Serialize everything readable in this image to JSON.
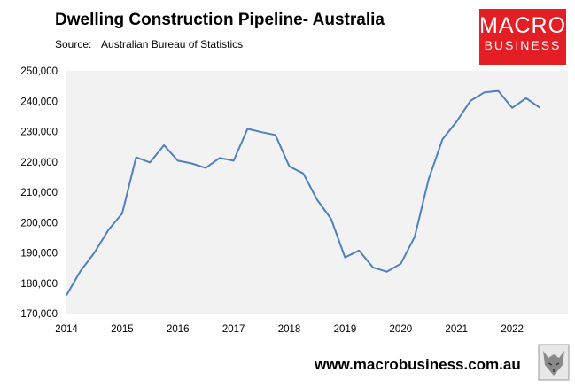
{
  "header": {
    "title": "Dwelling Construction Pipeline- Australia",
    "source_label": "Source:",
    "source_text": "Australian Bureau of Statistics"
  },
  "logo": {
    "line1": "MACRO",
    "line2": "BUSINESS",
    "color": "#e31e24"
  },
  "footer": {
    "url": "www.macrobusiness.com.au"
  },
  "chart_data": {
    "type": "line",
    "title": "Dwelling Construction Pipeline- Australia",
    "xlabel": "",
    "ylabel": "",
    "x_ticks": [
      "2014",
      "2015",
      "2016",
      "2017",
      "2018",
      "2019",
      "2020",
      "2021",
      "2022"
    ],
    "y_ticks": [
      "170,000",
      "180,000",
      "190,000",
      "200,000",
      "210,000",
      "220,000",
      "230,000",
      "240,000",
      "250,000"
    ],
    "xlim": [
      2014,
      2023
    ],
    "ylim": [
      170000,
      250000
    ],
    "grid": false,
    "line_color": "#4f81bd",
    "plot_background": "#f2f2f2",
    "series": [
      {
        "x": [
          2014.0,
          2014.25,
          2014.5,
          2014.75,
          2015.0,
          2015.25,
          2015.5,
          2015.75,
          2016.0,
          2016.25,
          2016.5,
          2016.75,
          2017.0,
          2017.25,
          2017.5,
          2017.75,
          2018.0,
          2018.25,
          2018.5,
          2018.75,
          2019.0,
          2019.25,
          2019.5,
          2019.75,
          2020.0,
          2020.25,
          2020.5,
          2020.75,
          2021.0,
          2021.25,
          2021.5,
          2021.75,
          2022.0,
          2022.25,
          2022.5
        ],
        "y": [
          176000,
          184000,
          190000,
          197500,
          203000,
          221500,
          219800,
          225500,
          220400,
          219500,
          218000,
          221300,
          220400,
          230900,
          229800,
          228900,
          218500,
          216200,
          207500,
          201200,
          188500,
          190800,
          185200,
          183800,
          186400,
          195300,
          214300,
          227500,
          233200,
          240100,
          242900,
          243400,
          237800,
          241000,
          237800
        ]
      }
    ]
  }
}
